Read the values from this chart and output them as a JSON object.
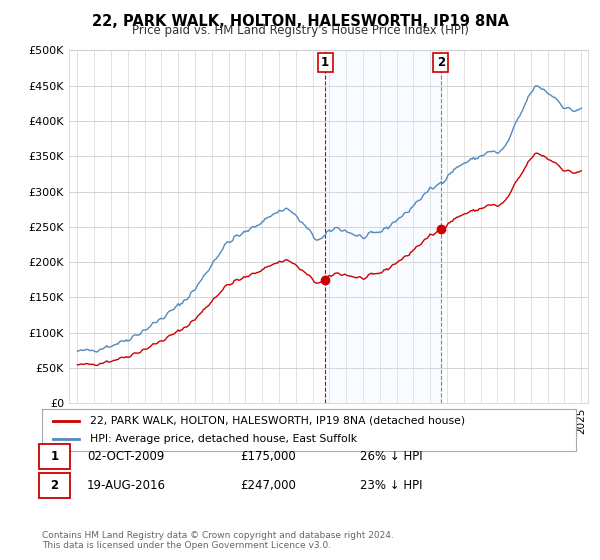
{
  "title": "22, PARK WALK, HOLTON, HALESWORTH, IP19 8NA",
  "subtitle": "Price paid vs. HM Land Registry's House Price Index (HPI)",
  "ylabel_ticks": [
    "£0",
    "£50K",
    "£100K",
    "£150K",
    "£200K",
    "£250K",
    "£300K",
    "£350K",
    "£400K",
    "£450K",
    "£500K"
  ],
  "ytick_vals": [
    0,
    50000,
    100000,
    150000,
    200000,
    250000,
    300000,
    350000,
    400000,
    450000,
    500000
  ],
  "ylim": [
    0,
    500000
  ],
  "sale1_date": 2009.75,
  "sale1_price": 175000,
  "sale1_label": "1",
  "sale2_date": 2016.63,
  "sale2_price": 247000,
  "sale2_label": "2",
  "sale_color": "#cc0000",
  "hpi_color": "#5588bb",
  "hpi_fill_color": "#ddeeff",
  "vline1_color": "#cc0000",
  "vline2_color": "#888888",
  "shade_color": "#ddeeff",
  "legend_sale_label": "22, PARK WALK, HOLTON, HALESWORTH, IP19 8NA (detached house)",
  "legend_hpi_label": "HPI: Average price, detached house, East Suffolk",
  "note1_num": "1",
  "note1_date": "02-OCT-2009",
  "note1_price": "£175,000",
  "note1_pct": "26% ↓ HPI",
  "note2_num": "2",
  "note2_date": "19-AUG-2016",
  "note2_price": "£247,000",
  "note2_pct": "23% ↓ HPI",
  "footer": "Contains HM Land Registry data © Crown copyright and database right 2024.\nThis data is licensed under the Open Government Licence v3.0.",
  "background_color": "#ffffff",
  "hpi_monthly_years": [
    1995.0,
    1995.083,
    1995.167,
    1995.25,
    1995.333,
    1995.417,
    1995.5,
    1995.583,
    1995.667,
    1995.75,
    1995.833,
    1995.917,
    1996.0,
    1996.083,
    1996.167,
    1996.25,
    1996.333,
    1996.417,
    1996.5,
    1996.583,
    1996.667,
    1996.75,
    1996.833,
    1996.917,
    1997.0,
    1997.083,
    1997.167,
    1997.25,
    1997.333,
    1997.417,
    1997.5,
    1997.583,
    1997.667,
    1997.75,
    1997.833,
    1997.917,
    1998.0,
    1998.083,
    1998.167,
    1998.25,
    1998.333,
    1998.417,
    1998.5,
    1998.583,
    1998.667,
    1998.75,
    1998.833,
    1998.917,
    1999.0,
    1999.083,
    1999.167,
    1999.25,
    1999.333,
    1999.417,
    1999.5,
    1999.583,
    1999.667,
    1999.75,
    1999.833,
    1999.917,
    2000.0,
    2000.083,
    2000.167,
    2000.25,
    2000.333,
    2000.417,
    2000.5,
    2000.583,
    2000.667,
    2000.75,
    2000.833,
    2000.917,
    2001.0,
    2001.083,
    2001.167,
    2001.25,
    2001.333,
    2001.417,
    2001.5,
    2001.583,
    2001.667,
    2001.75,
    2001.833,
    2001.917,
    2002.0,
    2002.083,
    2002.167,
    2002.25,
    2002.333,
    2002.417,
    2002.5,
    2002.583,
    2002.667,
    2002.75,
    2002.833,
    2002.917,
    2003.0,
    2003.083,
    2003.167,
    2003.25,
    2003.333,
    2003.417,
    2003.5,
    2003.583,
    2003.667,
    2003.75,
    2003.833,
    2003.917,
    2004.0,
    2004.083,
    2004.167,
    2004.25,
    2004.333,
    2004.417,
    2004.5,
    2004.583,
    2004.667,
    2004.75,
    2004.833,
    2004.917,
    2005.0,
    2005.083,
    2005.167,
    2005.25,
    2005.333,
    2005.417,
    2005.5,
    2005.583,
    2005.667,
    2005.75,
    2005.833,
    2005.917,
    2006.0,
    2006.083,
    2006.167,
    2006.25,
    2006.333,
    2006.417,
    2006.5,
    2006.583,
    2006.667,
    2006.75,
    2006.833,
    2006.917,
    2007.0,
    2007.083,
    2007.167,
    2007.25,
    2007.333,
    2007.417,
    2007.5,
    2007.583,
    2007.667,
    2007.75,
    2007.833,
    2007.917,
    2008.0,
    2008.083,
    2008.167,
    2008.25,
    2008.333,
    2008.417,
    2008.5,
    2008.583,
    2008.667,
    2008.75,
    2008.833,
    2008.917,
    2009.0,
    2009.083,
    2009.167,
    2009.25,
    2009.333,
    2009.417,
    2009.5,
    2009.583,
    2009.667,
    2009.75,
    2009.833,
    2009.917,
    2010.0,
    2010.083,
    2010.167,
    2010.25,
    2010.333,
    2010.417,
    2010.5,
    2010.583,
    2010.667,
    2010.75,
    2010.833,
    2010.917,
    2011.0,
    2011.083,
    2011.167,
    2011.25,
    2011.333,
    2011.417,
    2011.5,
    2011.583,
    2011.667,
    2011.75,
    2011.833,
    2011.917,
    2012.0,
    2012.083,
    2012.167,
    2012.25,
    2012.333,
    2012.417,
    2012.5,
    2012.583,
    2012.667,
    2012.75,
    2012.833,
    2012.917,
    2013.0,
    2013.083,
    2013.167,
    2013.25,
    2013.333,
    2013.417,
    2013.5,
    2013.583,
    2013.667,
    2013.75,
    2013.833,
    2013.917,
    2014.0,
    2014.083,
    2014.167,
    2014.25,
    2014.333,
    2014.417,
    2014.5,
    2014.583,
    2014.667,
    2014.75,
    2014.833,
    2014.917,
    2015.0,
    2015.083,
    2015.167,
    2015.25,
    2015.333,
    2015.417,
    2015.5,
    2015.583,
    2015.667,
    2015.75,
    2015.833,
    2015.917,
    2016.0,
    2016.083,
    2016.167,
    2016.25,
    2016.333,
    2016.417,
    2016.5,
    2016.583,
    2016.667,
    2016.75,
    2016.833,
    2016.917,
    2017.0,
    2017.083,
    2017.167,
    2017.25,
    2017.333,
    2017.417,
    2017.5,
    2017.583,
    2017.667,
    2017.75,
    2017.833,
    2017.917,
    2018.0,
    2018.083,
    2018.167,
    2018.25,
    2018.333,
    2018.417,
    2018.5,
    2018.583,
    2018.667,
    2018.75,
    2018.833,
    2018.917,
    2019.0,
    2019.083,
    2019.167,
    2019.25,
    2019.333,
    2019.417,
    2019.5,
    2019.583,
    2019.667,
    2019.75,
    2019.833,
    2019.917,
    2020.0,
    2020.083,
    2020.167,
    2020.25,
    2020.333,
    2020.417,
    2020.5,
    2020.583,
    2020.667,
    2020.75,
    2020.833,
    2020.917,
    2021.0,
    2021.083,
    2021.167,
    2021.25,
    2021.333,
    2021.417,
    2021.5,
    2021.583,
    2021.667,
    2021.75,
    2021.833,
    2021.917,
    2022.0,
    2022.083,
    2022.167,
    2022.25,
    2022.333,
    2022.417,
    2022.5,
    2022.583,
    2022.667,
    2022.75,
    2022.833,
    2022.917,
    2023.0,
    2023.083,
    2023.167,
    2023.25,
    2023.333,
    2023.417,
    2023.5,
    2023.583,
    2023.667,
    2023.75,
    2023.833,
    2023.917,
    2024.0,
    2024.083,
    2024.167,
    2024.25,
    2024.333,
    2024.417,
    2024.5,
    2024.583,
    2024.667,
    2024.75,
    2024.833,
    2024.917,
    2025.0
  ]
}
